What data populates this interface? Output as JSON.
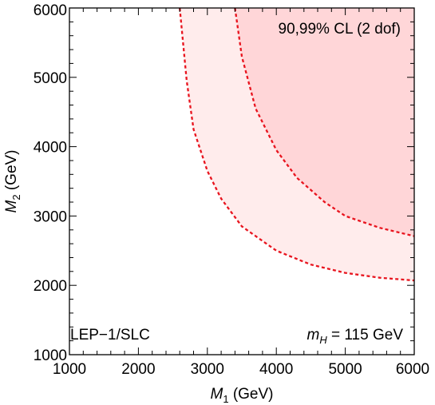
{
  "chart_data": {
    "type": "area",
    "xlabel": {
      "var": "M",
      "sub": "1",
      "unit": " (GeV)"
    },
    "ylabel": {
      "var": "M",
      "sub": "2",
      "unit": " (GeV)"
    },
    "xlim": [
      1000,
      6000
    ],
    "ylim": [
      1000,
      6000
    ],
    "x_ticks": [
      "1000",
      "2000",
      "3000",
      "4000",
      "5000",
      "6000"
    ],
    "y_ticks": [
      "1000",
      "2000",
      "3000",
      "4000",
      "5000",
      "6000"
    ],
    "grid": false,
    "series": [
      {
        "name": "90%",
        "style": "dashed",
        "color": "#e8141e",
        "fill": "#ffecec",
        "points": [
          [
            2600,
            6000
          ],
          [
            2700,
            4950
          ],
          [
            2800,
            4250
          ],
          [
            3000,
            3650
          ],
          [
            3200,
            3250
          ],
          [
            3500,
            2850
          ],
          [
            4000,
            2500
          ],
          [
            4500,
            2300
          ],
          [
            5000,
            2180
          ],
          [
            5500,
            2110
          ],
          [
            6000,
            2070
          ]
        ]
      },
      {
        "name": "99%",
        "style": "dashed",
        "color": "#e8141e",
        "fill": "#ffd6d8",
        "points": [
          [
            3400,
            6000
          ],
          [
            3500,
            5300
          ],
          [
            3700,
            4550
          ],
          [
            4000,
            3950
          ],
          [
            4300,
            3550
          ],
          [
            4700,
            3200
          ],
          [
            5000,
            3000
          ],
          [
            5500,
            2830
          ],
          [
            6000,
            2710
          ]
        ]
      }
    ],
    "annotations": {
      "top_right": "90,99% CL (2 dof)",
      "bottom_left": "LEP−1/SLC",
      "bottom_right_var": "m",
      "bottom_right_sub": "H",
      "bottom_right_rest": " = 115 GeV"
    }
  }
}
